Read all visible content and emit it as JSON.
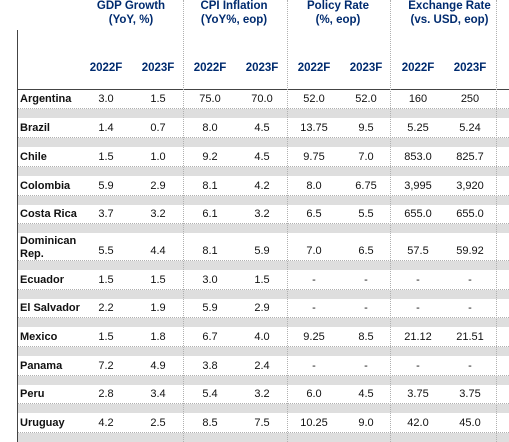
{
  "groups": [
    {
      "title": "GDP Growth",
      "unit": "(YoY, %)"
    },
    {
      "title": "CPI Inflation",
      "unit": "(YoY%, eop)"
    },
    {
      "title": "Policy Rate",
      "unit": "(%, eop)"
    },
    {
      "title": "Exchange Rate",
      "unit": "(vs. USD, eop)"
    }
  ],
  "years": [
    "2022F",
    "2023F",
    "2022F",
    "2023F",
    "2022F",
    "2023F",
    "2022F",
    "2023F"
  ],
  "rows": [
    {
      "country": "Argentina",
      "values": [
        "3.0",
        "1.5",
        "75.0",
        "70.0",
        "52.0",
        "52.0",
        "160",
        "250"
      ]
    },
    {
      "country": "Brazil",
      "values": [
        "1.4",
        "0.7",
        "8.0",
        "4.5",
        "13.75",
        "9.5",
        "5.25",
        "5.24"
      ]
    },
    {
      "country": "Chile",
      "values": [
        "1.5",
        "1.0",
        "9.2",
        "4.5",
        "9.75",
        "7.0",
        "853.0",
        "825.7"
      ]
    },
    {
      "country": "Colombia",
      "values": [
        "5.9",
        "2.9",
        "8.1",
        "4.2",
        "8.0",
        "6.75",
        "3,995",
        "3,920"
      ]
    },
    {
      "country": "Costa Rica",
      "values": [
        "3.7",
        "3.2",
        "6.1",
        "3.2",
        "6.5",
        "5.5",
        "655.0",
        "655.0"
      ]
    },
    {
      "country": "Dominican Rep.",
      "values": [
        "5.5",
        "4.4",
        "8.1",
        "5.9",
        "7.0",
        "6.5",
        "57.5",
        "59.92"
      ]
    },
    {
      "country": "Ecuador",
      "values": [
        "1.5",
        "1.5",
        "3.0",
        "1.5",
        "-",
        "-",
        "-",
        "-"
      ]
    },
    {
      "country": "El Salvador",
      "values": [
        "2.2",
        "1.9",
        "5.9",
        "2.9",
        "-",
        "-",
        "-",
        "-"
      ]
    },
    {
      "country": "Mexico",
      "values": [
        "1.5",
        "1.8",
        "6.7",
        "4.0",
        "9.25",
        "8.5",
        "21.12",
        "21.51"
      ]
    },
    {
      "country": "Panama",
      "values": [
        "7.2",
        "4.9",
        "3.8",
        "2.4",
        "-",
        "-",
        "-",
        "-"
      ]
    },
    {
      "country": "Peru",
      "values": [
        "2.8",
        "3.4",
        "5.4",
        "3.2",
        "6.0",
        "4.5",
        "3.75",
        "3.75"
      ]
    },
    {
      "country": "Uruguay",
      "values": [
        "4.2",
        "2.5",
        "8.5",
        "7.5",
        "10.25",
        "9.0",
        "42.0",
        "45.0"
      ]
    }
  ]
}
